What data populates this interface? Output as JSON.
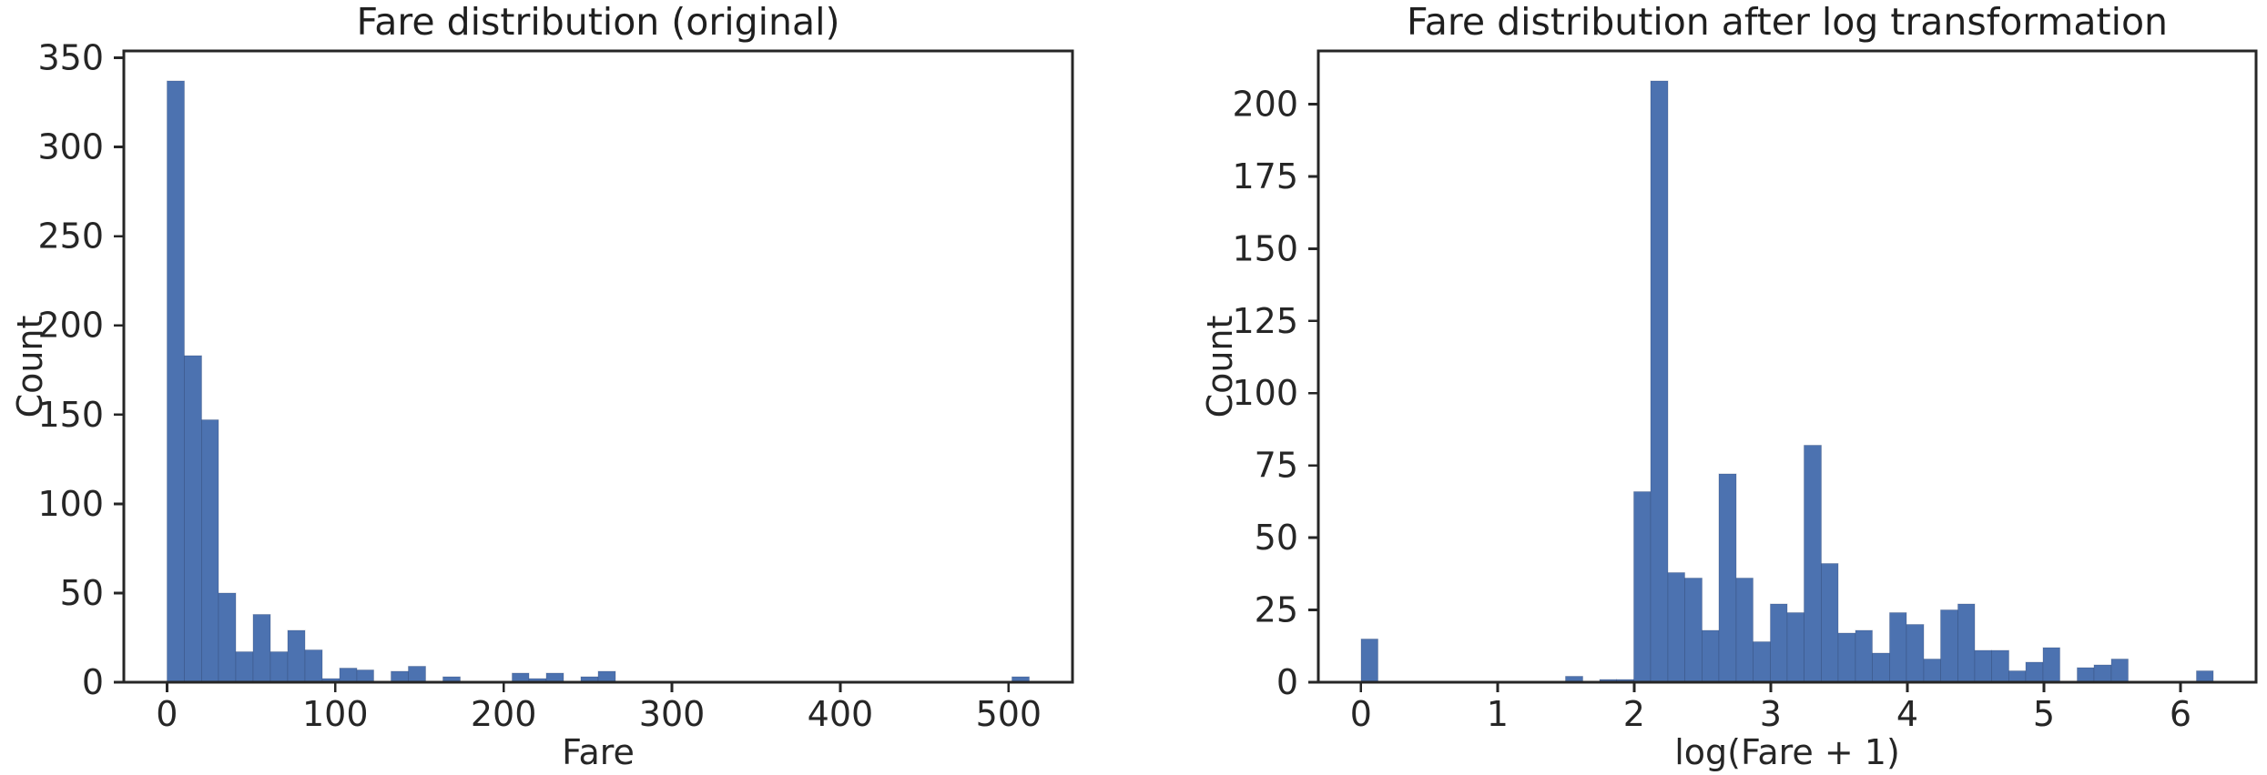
{
  "figure": {
    "background": "#ffffff",
    "bar_color": "#4C72B0",
    "bar_edge_color": "rgba(38,58,96,0.25)",
    "spine_color": "#262626",
    "tick_color": "#262626",
    "text_color": "#262626",
    "title_color": "#1f1f1f"
  },
  "chart_data": [
    {
      "type": "bar",
      "subtype": "histogram",
      "title": "Fare distribution (original)",
      "xlabel": "Fare",
      "ylabel": "Count",
      "bin_start": 0,
      "bin_width": 10.24658,
      "counts": [
        337,
        183,
        147,
        50,
        17,
        38,
        17,
        29,
        18,
        2,
        8,
        7,
        0,
        6,
        9,
        0,
        3,
        0,
        0,
        0,
        5,
        2,
        5,
        0,
        3,
        6,
        0,
        0,
        0,
        0,
        0,
        0,
        0,
        0,
        0,
        0,
        0,
        0,
        0,
        0,
        0,
        0,
        0,
        0,
        0,
        0,
        0,
        0,
        0,
        3
      ],
      "xticks": [
        0,
        100,
        200,
        300,
        400,
        500
      ],
      "yticks": [
        0,
        50,
        100,
        150,
        200,
        250,
        300,
        350
      ],
      "xlim": [
        -25.62,
        537.95
      ],
      "ylim": [
        0,
        353.85
      ],
      "grid": false,
      "legend_position": "none"
    },
    {
      "type": "bar",
      "subtype": "histogram",
      "title": "Fare distribution after log transformation",
      "xlabel": "log(Fare + 1)",
      "ylabel": "Count",
      "bin_start": 0,
      "bin_width": 0.1248265,
      "counts": [
        15,
        0,
        0,
        0,
        0,
        0,
        0,
        0,
        0,
        0,
        0,
        0,
        2,
        0,
        1,
        1,
        66,
        208,
        38,
        36,
        18,
        72,
        36,
        14,
        27,
        24,
        82,
        41,
        17,
        18,
        10,
        24,
        20,
        8,
        25,
        27,
        11,
        11,
        4,
        7,
        12,
        0,
        5,
        6,
        8,
        0,
        0,
        0,
        0,
        4
      ],
      "xticks": [
        0,
        1,
        2,
        3,
        4,
        5,
        6
      ],
      "yticks": [
        0,
        25,
        50,
        75,
        100,
        125,
        150,
        175,
        200
      ],
      "xlim": [
        -0.3121,
        6.5534
      ],
      "ylim": [
        0,
        218.4
      ],
      "grid": false,
      "legend_position": "none"
    }
  ]
}
